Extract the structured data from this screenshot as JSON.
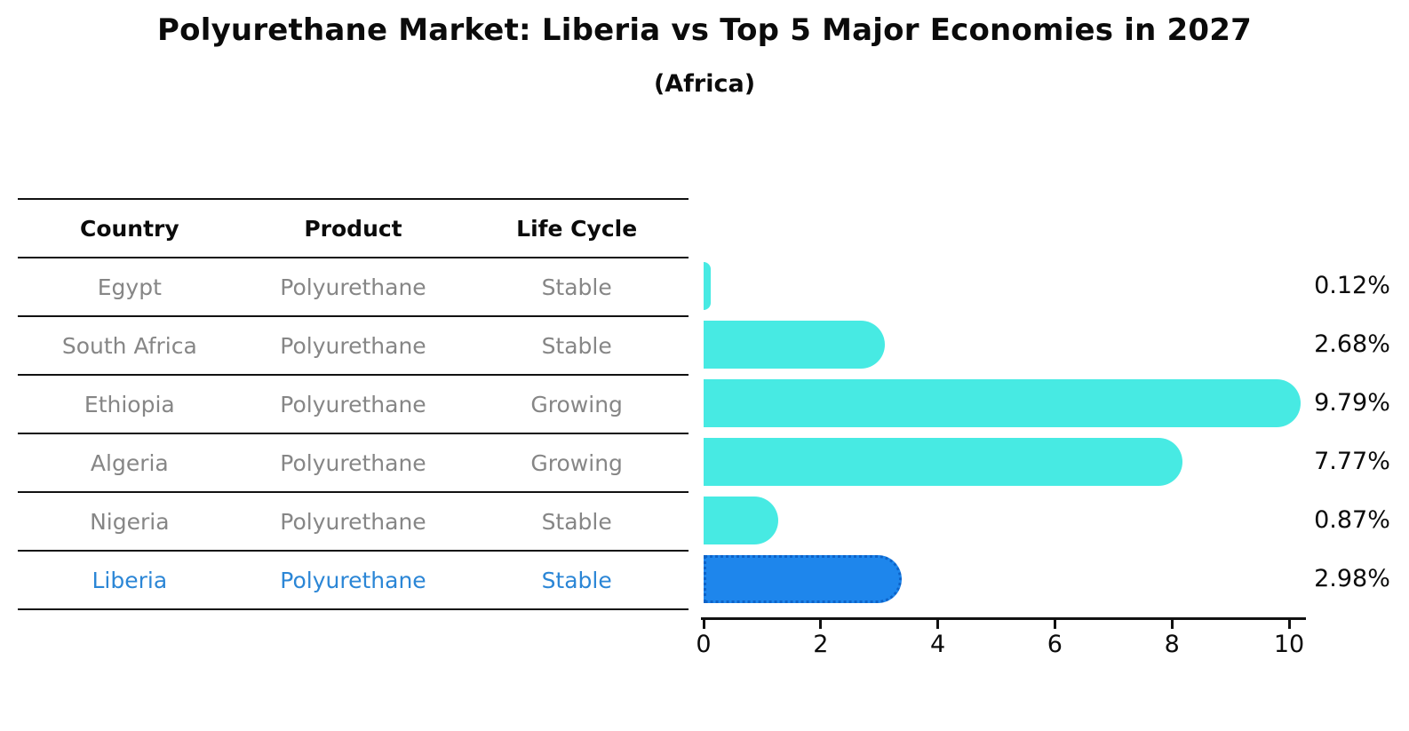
{
  "title": "Polyurethane Market: Liberia vs Top 5 Major Economies in 2027",
  "subtitle": "(Africa)",
  "table": {
    "headers": [
      "Country",
      "Product",
      "Life Cycle"
    ],
    "rows": [
      {
        "country": "Egypt",
        "product": "Polyurethane",
        "life_cycle": "Stable",
        "highlight": false
      },
      {
        "country": "South Africa",
        "product": "Polyurethane",
        "life_cycle": "Stable",
        "highlight": false
      },
      {
        "country": "Ethiopia",
        "product": "Polyurethane",
        "life_cycle": "Growing",
        "highlight": false
      },
      {
        "country": "Algeria",
        "product": "Polyurethane",
        "life_cycle": "Growing",
        "highlight": false
      },
      {
        "country": "Nigeria",
        "product": "Polyurethane",
        "life_cycle": "Stable",
        "highlight": false
      },
      {
        "country": "Liberia",
        "product": "Polyurethane",
        "life_cycle": "Stable",
        "highlight": true
      }
    ]
  },
  "chart_data": {
    "type": "bar",
    "orientation": "horizontal",
    "title": "Polyurethane Market: Liberia vs Top 5 Major Economies in 2027",
    "subtitle": "(Africa)",
    "categories": [
      "Egypt",
      "South Africa",
      "Ethiopia",
      "Algeria",
      "Nigeria",
      "Liberia"
    ],
    "values": [
      0.12,
      2.68,
      9.79,
      7.77,
      0.87,
      2.98
    ],
    "value_labels": [
      "0.12%",
      "2.68%",
      "9.79%",
      "7.77%",
      "0.87%",
      "2.98%"
    ],
    "highlight_index": 5,
    "xlabel": "",
    "ylabel": "",
    "xticks": [
      0,
      2,
      4,
      6,
      8,
      10
    ],
    "xtick_labels": [
      "0",
      "2",
      "4",
      "6",
      "8",
      "10"
    ],
    "xlim": [
      0,
      10.3
    ],
    "grid": false,
    "legend": "none",
    "bar_color": "#47EAE3",
    "highlight_bar_color": "#1E86EC",
    "highlight_border_color": "#0d63c9",
    "highlight_text_color": "#2b86d6",
    "text_color": "#868686",
    "axis_color": "#111111"
  }
}
